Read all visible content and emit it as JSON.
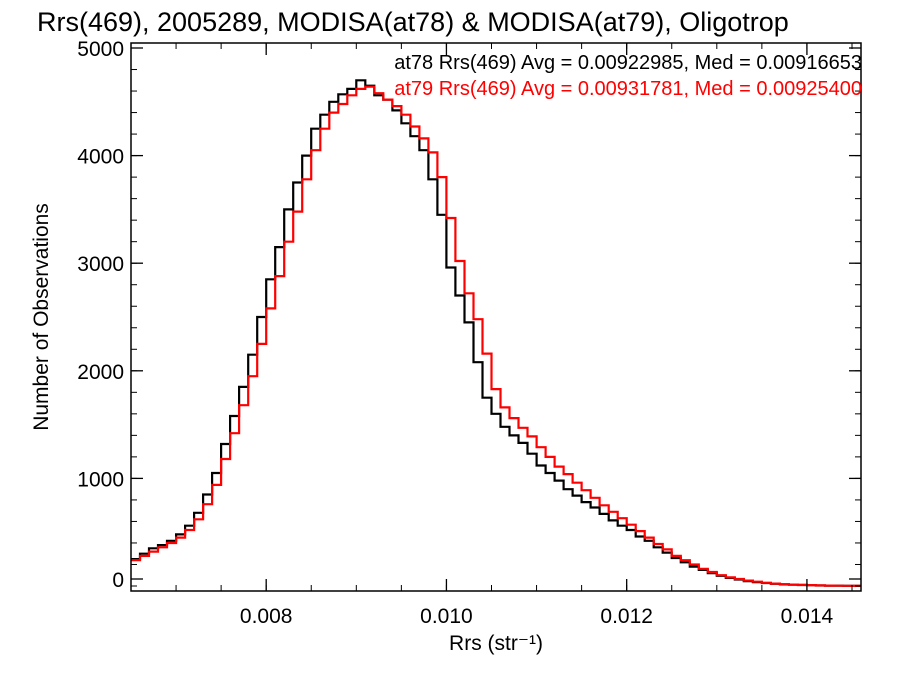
{
  "chart_data": {
    "type": "histogram",
    "title": "Rrs(469), 2005289, MODISA(at78) & MODISA(at79), Oligotrop",
    "xlabel": "Rrs (str⁻¹)",
    "ylabel": "Number of Observations",
    "xlim": [
      0.0065,
      0.0146
    ],
    "ylim": [
      0,
      5000
    ],
    "x_ticks": [
      "0.008",
      "0.010",
      "0.012",
      "0.014"
    ],
    "y_ticks": [
      "0",
      "1000",
      "2000",
      "3000",
      "4000",
      "5000"
    ],
    "grid": false,
    "legend_position": "top-right",
    "series": [
      {
        "name": "at78 Rrs(469) Avg = 0.00922985, Med = 0.00916653",
        "color": "#000000",
        "x": [
          0.0065,
          0.0066,
          0.0067,
          0.0068,
          0.0069,
          0.007,
          0.0071,
          0.0072,
          0.0073,
          0.0074,
          0.0075,
          0.0076,
          0.0077,
          0.0078,
          0.0079,
          0.008,
          0.0081,
          0.0082,
          0.0083,
          0.0084,
          0.0085,
          0.0086,
          0.0087,
          0.0088,
          0.0089,
          0.009,
          0.0091,
          0.0092,
          0.0093,
          0.0094,
          0.0095,
          0.0096,
          0.0097,
          0.0098,
          0.0099,
          0.01,
          0.0101,
          0.0102,
          0.0103,
          0.0104,
          0.0105,
          0.0106,
          0.0107,
          0.0108,
          0.0109,
          0.011,
          0.0111,
          0.0112,
          0.0113,
          0.0114,
          0.0115,
          0.0116,
          0.0117,
          0.0118,
          0.0119,
          0.012,
          0.0121,
          0.0122,
          0.0123,
          0.0124,
          0.0125,
          0.0126,
          0.0127,
          0.0128,
          0.0129,
          0.013,
          0.0131,
          0.0132,
          0.0133,
          0.0134,
          0.0135,
          0.0136,
          0.0137,
          0.0138,
          0.0139,
          0.014,
          0.0141,
          0.0142,
          0.0143,
          0.0144,
          0.0145,
          0.0146
        ],
        "y": [
          250,
          300,
          350,
          380,
          420,
          480,
          560,
          680,
          850,
          1050,
          1320,
          1580,
          1850,
          2150,
          2500,
          2850,
          3150,
          3500,
          3750,
          4000,
          4250,
          4380,
          4500,
          4570,
          4620,
          4700,
          4650,
          4560,
          4520,
          4420,
          4300,
          4180,
          4050,
          3780,
          3450,
          2960,
          2700,
          2450,
          2080,
          1750,
          1600,
          1480,
          1400,
          1330,
          1230,
          1120,
          1050,
          980,
          900,
          840,
          780,
          730,
          670,
          610,
          560,
          520,
          460,
          420,
          360,
          310,
          260,
          220,
          180,
          150,
          120,
          95,
          75,
          60,
          45,
          35,
          28,
          20,
          15,
          12,
          9,
          7,
          5,
          4,
          3,
          2,
          1,
          1
        ]
      },
      {
        "name": "at79 Rrs(469) Avg = 0.00931781, Med = 0.00925400",
        "color": "#ff0000",
        "x": [
          0.0065,
          0.0066,
          0.0067,
          0.0068,
          0.0069,
          0.007,
          0.0071,
          0.0072,
          0.0073,
          0.0074,
          0.0075,
          0.0076,
          0.0077,
          0.0078,
          0.0079,
          0.008,
          0.0081,
          0.0082,
          0.0083,
          0.0084,
          0.0085,
          0.0086,
          0.0087,
          0.0088,
          0.0089,
          0.009,
          0.0091,
          0.0092,
          0.0093,
          0.0094,
          0.0095,
          0.0096,
          0.0097,
          0.0098,
          0.0099,
          0.01,
          0.0101,
          0.0102,
          0.0103,
          0.0104,
          0.0105,
          0.0106,
          0.0107,
          0.0108,
          0.0109,
          0.011,
          0.0111,
          0.0112,
          0.0113,
          0.0114,
          0.0115,
          0.0116,
          0.0117,
          0.0118,
          0.0119,
          0.012,
          0.0121,
          0.0122,
          0.0123,
          0.0124,
          0.0125,
          0.0126,
          0.0127,
          0.0128,
          0.0129,
          0.013,
          0.0131,
          0.0132,
          0.0133,
          0.0134,
          0.0135,
          0.0136,
          0.0137,
          0.0138,
          0.0139,
          0.014,
          0.0141,
          0.0142,
          0.0143,
          0.0144,
          0.0145,
          0.0146
        ],
        "y": [
          240,
          280,
          320,
          360,
          400,
          450,
          520,
          620,
          760,
          940,
          1180,
          1420,
          1680,
          1950,
          2250,
          2580,
          2880,
          3200,
          3480,
          3780,
          4050,
          4250,
          4400,
          4480,
          4560,
          4620,
          4640,
          4580,
          4520,
          4460,
          4380,
          4270,
          4160,
          4030,
          3800,
          3420,
          3020,
          2720,
          2480,
          2160,
          1830,
          1660,
          1560,
          1470,
          1390,
          1290,
          1200,
          1110,
          1040,
          960,
          890,
          820,
          750,
          690,
          630,
          570,
          510,
          450,
          390,
          340,
          280,
          240,
          200,
          160,
          130,
          100,
          80,
          65,
          50,
          40,
          30,
          22,
          17,
          13,
          10,
          8,
          6,
          4,
          3,
          2,
          1,
          1
        ]
      }
    ]
  }
}
